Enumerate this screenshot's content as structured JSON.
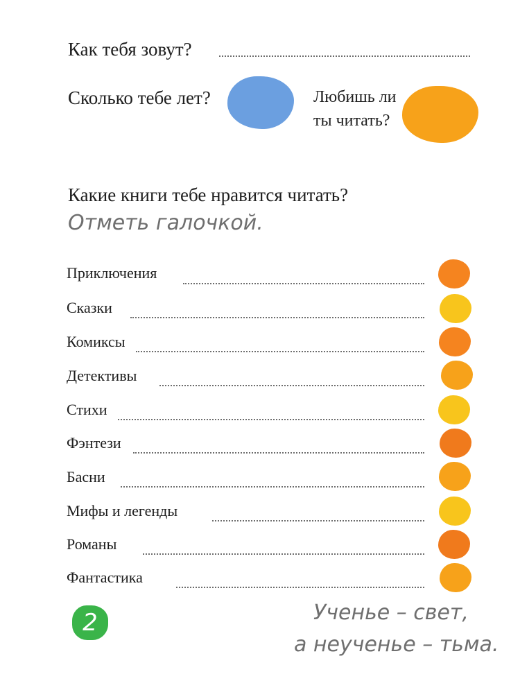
{
  "questions": {
    "name": "Как тебя зовут?",
    "age": "Сколько тебе лет?",
    "love_reading": [
      "Любишь ли",
      "ты читать?"
    ]
  },
  "books": {
    "heading": "Какие книги тебе нравится читать?",
    "instruction": "Отметь галочкой.",
    "genres": [
      "Приключения",
      "Сказки",
      "Комиксы",
      "Детективы",
      "Стихи",
      "Фэнтези",
      "Басни",
      "Мифы и легенды",
      "Романы",
      "Фантастика"
    ]
  },
  "proverb": [
    "Ученье – свет,",
    "а неученье – тьма."
  ],
  "page_number": "2",
  "colors": {
    "age_blob": "#6b9fe0",
    "reading_blob": "#f7a21a",
    "checkboxes": [
      "#f5841f",
      "#f8c51c",
      "#f5841f",
      "#f7a21a",
      "#f8c51c",
      "#f07a1c",
      "#f7a21a",
      "#f8c51c",
      "#f07a1c",
      "#f7a21a"
    ],
    "page_badge": "#3ab449"
  }
}
